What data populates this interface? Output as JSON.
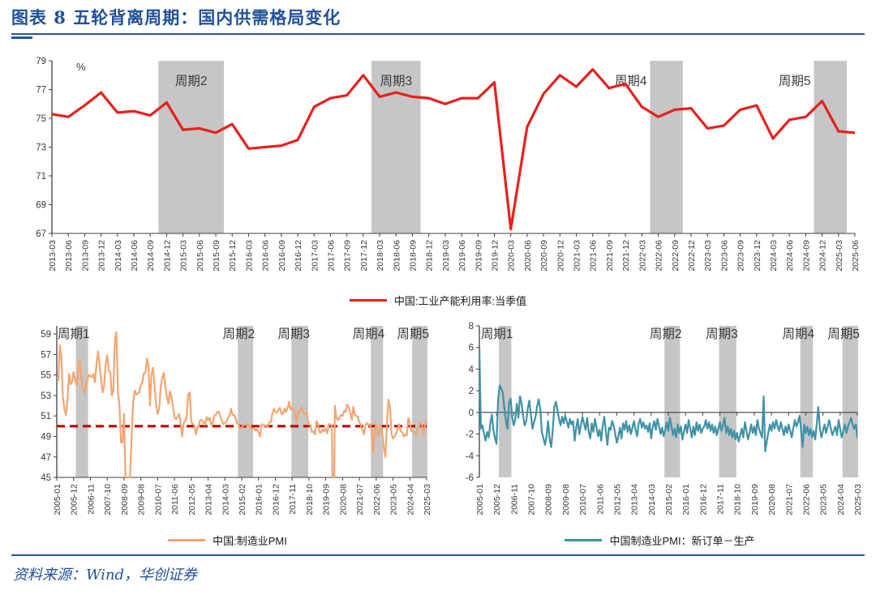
{
  "figure": {
    "title": "图表 8  五轮背离周期：国内供需格局变化",
    "source": "资料来源：Wind，华创证券"
  },
  "colors": {
    "accent_blue": "#21519B",
    "band_gray": "#C6C6C6",
    "line_red": "#E8201E",
    "line_orange": "#F3A571",
    "line_teal": "#3E92A6",
    "refline_dark_red": "#C00000"
  },
  "chart_data": [
    {
      "type": "line",
      "name": "capacity-utilization",
      "legend": "中国:工业产能利用率:当季值",
      "color": "#E8201E",
      "unit_label": "%",
      "ylim": [
        67,
        79
      ],
      "yticks": [
        67,
        69,
        71,
        73,
        75,
        77,
        79
      ],
      "x_type": "list",
      "x": [
        "2013-03",
        "2013-06",
        "2013-09",
        "2013-12",
        "2014-03",
        "2014-06",
        "2014-09",
        "2014-12",
        "2015-03",
        "2015-06",
        "2015-09",
        "2015-12",
        "2016-03",
        "2016-06",
        "2016-09",
        "2016-12",
        "2017-03",
        "2017-06",
        "2017-09",
        "2017-12",
        "2018-03",
        "2018-06",
        "2018-09",
        "2018-12",
        "2019-03",
        "2019-06",
        "2019-09",
        "2019-12",
        "2020-03",
        "2020-06",
        "2020-09",
        "2020-12",
        "2021-03",
        "2021-06",
        "2021-09",
        "2021-12",
        "2022-03",
        "2022-06",
        "2022-09",
        "2022-12",
        "2023-03",
        "2023-06",
        "2023-09",
        "2023-12",
        "2024-03",
        "2024-06",
        "2024-09",
        "2024-12",
        "2025-03",
        "2025-06"
      ],
      "values": [
        75.3,
        75.1,
        75.9,
        76.8,
        75.4,
        75.5,
        75.2,
        76.1,
        74.2,
        74.3,
        74.0,
        74.6,
        72.9,
        73.0,
        73.1,
        73.5,
        75.8,
        76.4,
        76.6,
        78.0,
        76.5,
        76.8,
        76.5,
        76.4,
        76.0,
        76.4,
        76.4,
        77.5,
        67.3,
        74.4,
        76.7,
        78.0,
        77.2,
        78.4,
        77.1,
        77.4,
        75.8,
        75.1,
        75.6,
        75.7,
        74.3,
        74.5,
        75.6,
        75.9,
        73.6,
        74.9,
        75.1,
        76.2,
        74.1,
        74.0
      ],
      "bands": [
        {
          "label": "周期2",
          "from": "2014-12",
          "to": "2015-09",
          "label_anchor": "center"
        },
        {
          "label": "周期3",
          "from": "2018-03",
          "to": "2018-09",
          "label_anchor": "center"
        },
        {
          "label": "周期4",
          "from": "2022-06",
          "to": "2022-09",
          "label_anchor": "before"
        },
        {
          "label": "周期5",
          "from": "2024-12",
          "to": "2025-03",
          "label_anchor": "before"
        }
      ]
    },
    {
      "type": "line",
      "name": "manufacturing-pmi",
      "legend": "中国:制造业PMI",
      "color": "#F3A571",
      "ylim": [
        45,
        59.8
      ],
      "yticks": [
        45,
        47,
        49,
        51,
        53,
        55,
        57,
        59
      ],
      "x_type": "monthly",
      "x_start": "2005-01",
      "x_end": "2025-03",
      "tick_interval_months": 11,
      "tick_labels": [
        "2005-01",
        "2005-12",
        "2006-11",
        "2007-10",
        "2008-09",
        "2009-08",
        "2010-07",
        "2011-06",
        "2012-05",
        "2013-04",
        "2014-03",
        "2015-02",
        "2016-01",
        "2016-12",
        "2017-11",
        "2018-10",
        "2019-09",
        "2020-08",
        "2021-07",
        "2022-06",
        "2023-05",
        "2024-04",
        "2025-03"
      ],
      "refline": {
        "value": 50,
        "color": "#C00000",
        "dashed": true
      },
      "values": [
        54.7,
        54.5,
        57.9,
        56.7,
        52.9,
        51.7,
        51.1,
        52.6,
        55.1,
        54.1,
        54.3,
        55.3,
        54.5,
        54.0,
        55.8,
        56.5,
        54.8,
        53.9,
        53.2,
        53.9,
        54.5,
        55.0,
        54.9,
        54.8,
        55.1,
        54.3,
        56.1,
        57.3,
        55.9,
        54.5,
        53.3,
        54.0,
        56.1,
        56.9,
        55.4,
        55.3,
        53.0,
        53.4,
        58.4,
        59.2,
        53.3,
        52.0,
        48.4,
        48.4,
        51.2,
        44.6,
        38.8,
        41.2,
        45.3,
        49.0,
        52.4,
        53.5,
        53.1,
        53.2,
        53.3,
        54.0,
        54.3,
        55.2,
        55.2,
        56.6,
        55.8,
        52.0,
        55.1,
        55.7,
        53.9,
        52.1,
        51.2,
        51.7,
        53.8,
        54.7,
        55.2,
        53.9,
        52.9,
        52.2,
        53.4,
        52.9,
        52.0,
        50.9,
        50.7,
        50.9,
        51.2,
        50.4,
        49.0,
        50.3,
        50.5,
        51.0,
        53.1,
        53.3,
        50.4,
        50.2,
        50.1,
        49.2,
        49.8,
        50.2,
        50.6,
        50.6,
        50.4,
        50.1,
        50.9,
        50.6,
        50.8,
        50.1,
        50.3,
        51.0,
        51.1,
        51.4,
        51.4,
        51.0,
        50.5,
        50.2,
        50.3,
        50.4,
        50.8,
        51.0,
        51.7,
        51.1,
        51.1,
        50.8,
        50.3,
        50.1,
        49.8,
        49.9,
        50.1,
        50.1,
        50.2,
        50.2,
        50.0,
        49.7,
        49.8,
        49.8,
        49.6,
        49.7,
        49.4,
        49.0,
        50.2,
        50.1,
        50.1,
        50.0,
        49.9,
        50.4,
        50.4,
        51.2,
        51.7,
        51.4,
        51.3,
        51.6,
        51.8,
        51.2,
        51.2,
        51.7,
        51.4,
        51.7,
        52.4,
        51.6,
        51.8,
        51.6,
        51.3,
        50.3,
        51.5,
        51.4,
        51.9,
        51.5,
        51.2,
        51.3,
        50.8,
        50.2,
        50.0,
        49.4,
        49.5,
        49.2,
        50.5,
        50.1,
        49.4,
        49.4,
        49.7,
        49.5,
        49.8,
        49.3,
        50.2,
        50.2,
        50.0,
        35.7,
        52.0,
        50.8,
        50.6,
        50.9,
        51.1,
        51.0,
        51.5,
        51.4,
        52.1,
        51.9,
        51.3,
        50.6,
        51.9,
        51.1,
        51.0,
        50.9,
        50.4,
        50.1,
        49.6,
        49.2,
        50.1,
        50.3,
        50.1,
        50.2,
        49.5,
        47.4,
        49.6,
        50.2,
        49.0,
        49.4,
        50.1,
        49.2,
        48.0,
        47.0,
        50.1,
        52.6,
        51.9,
        49.2,
        48.8,
        49.0,
        49.3,
        49.7,
        50.2,
        49.5,
        49.4,
        49.0,
        49.2,
        49.1,
        50.8,
        50.4,
        49.5,
        49.5,
        49.4,
        49.1,
        49.8,
        50.1,
        50.3,
        50.1,
        49.1,
        50.2,
        50.5
      ],
      "bands": [
        {
          "label": "周期1",
          "from": "2006-02",
          "to": "2006-09",
          "label_anchor": "end"
        },
        {
          "label": "周期2",
          "from": "2014-12",
          "to": "2015-09",
          "label_anchor": "end"
        },
        {
          "label": "周期3",
          "from": "2017-11",
          "to": "2018-09",
          "label_anchor": "end"
        },
        {
          "label": "周期4",
          "from": "2022-03",
          "to": "2022-10",
          "label_anchor": "end"
        },
        {
          "label": "周期5",
          "from": "2024-06",
          "to": "2025-03",
          "label_anchor": "end"
        }
      ]
    },
    {
      "type": "line",
      "name": "pmi-new-orders-minus-production",
      "legend": "中国制造业PMI：新订单－生产",
      "color": "#3E92A6",
      "ylim": [
        -6,
        8
      ],
      "yticks": [
        -6,
        -4,
        -2,
        0,
        2,
        4,
        6,
        8
      ],
      "zero_axis": true,
      "x_type": "monthly",
      "x_start": "2005-01",
      "x_end": "2025-03",
      "tick_interval_months": 11,
      "tick_labels": [
        "2005-01",
        "2005-12",
        "2006-11",
        "2007-10",
        "2008-09",
        "2009-08",
        "2010-07",
        "2011-06",
        "2012-05",
        "2013-04",
        "2014-03",
        "2015-02",
        "2016-01",
        "2016-12",
        "2017-11",
        "2018-10",
        "2019-09",
        "2020-08",
        "2021-07",
        "2022-06",
        "2023-05",
        "2024-04",
        "2025-03"
      ],
      "values": [
        6.0,
        -1.5,
        -1.2,
        -2.0,
        -2.6,
        -1.8,
        -2.3,
        -1.0,
        -0.2,
        -1.6,
        -2.4,
        -2.9,
        1.2,
        2.5,
        2.2,
        1.8,
        0.4,
        -0.8,
        -1.5,
        0.9,
        1.3,
        -0.4,
        -1.2,
        -0.6,
        0.8,
        -0.5,
        1.5,
        0.9,
        -0.3,
        -1.2,
        -0.8,
        0.4,
        1.1,
        -0.2,
        -1.5,
        -0.9,
        -0.4,
        0.6,
        1.2,
        0.3,
        -1.8,
        -2.4,
        -3.0,
        -2.2,
        -0.8,
        -2.5,
        -3.2,
        -1.6,
        0.5,
        1.0,
        0.2,
        -0.6,
        -1.2,
        -0.4,
        -1.0,
        -0.3,
        -0.8,
        -1.4,
        -0.6,
        -1.1,
        -0.8,
        -2.6,
        -1.4,
        -0.6,
        -2.0,
        -1.2,
        -0.4,
        -1.0,
        -1.6,
        -0.5,
        -1.8,
        -2.4,
        -1.0,
        -1.8,
        -0.6,
        -1.4,
        -2.2,
        -1.6,
        -2.6,
        -1.2,
        -0.4,
        -1.8,
        -3.0,
        -1.4,
        -1.6,
        -0.8,
        -1.2,
        -2.0,
        -2.8,
        -2.2,
        -1.4,
        -2.4,
        -1.0,
        -1.6,
        -0.8,
        -1.8,
        -1.2,
        -2.0,
        -1.4,
        -0.8,
        -1.6,
        -2.2,
        -1.0,
        -0.6,
        -1.4,
        -0.9,
        -1.5,
        -1.2,
        -1.8,
        -1.0,
        -2.4,
        -1.4,
        -0.8,
        -1.6,
        -0.6,
        -1.2,
        -2.0,
        -1.4,
        -2.2,
        -1.6,
        -0.9,
        -1.7,
        -0.5,
        -1.3,
        -2.1,
        -1.5,
        -2.3,
        -1.1,
        -1.9,
        -1.3,
        -2.5,
        -1.7,
        -1.1,
        -1.9,
        -0.7,
        -1.5,
        -2.3,
        -1.3,
        -2.1,
        -0.9,
        -1.7,
        -1.1,
        -1.9,
        -1.5,
        -1.3,
        -0.7,
        -1.5,
        -0.9,
        -1.7,
        -1.1,
        -1.9,
        -1.3,
        -2.1,
        -1.5,
        -0.9,
        -1.7,
        -1.1,
        -0.5,
        -1.9,
        -1.3,
        -2.1,
        -1.5,
        -2.3,
        -1.7,
        -2.5,
        -1.9,
        -2.7,
        -2.1,
        -1.5,
        -2.3,
        -0.9,
        -1.7,
        -2.5,
        -1.9,
        -1.1,
        -1.9,
        -1.3,
        -2.1,
        -0.7,
        -1.5,
        -1.9,
        -2.3,
        1.5,
        -3.6,
        -2.7,
        -1.9,
        -1.1,
        -1.7,
        -0.9,
        -1.5,
        -0.7,
        -1.3,
        -1.7,
        -0.9,
        -1.5,
        -2.1,
        -1.3,
        -1.9,
        -1.1,
        -1.7,
        -2.3,
        -1.5,
        -0.7,
        -1.3,
        -0.9,
        -0.3,
        -1.7,
        -3.2,
        -1.1,
        -1.9,
        -1.3,
        -2.1,
        -1.5,
        -2.3,
        -1.7,
        -2.5,
        -1.1,
        0.5,
        -1.5,
        -2.3,
        -1.7,
        -1.1,
        -1.9,
        -1.3,
        -0.7,
        -1.5,
        -2.1,
        -1.7,
        -1.3,
        -2.1,
        -0.7,
        -1.5,
        -2.3,
        -1.7,
        -1.1,
        -1.9,
        -1.3,
        -0.9,
        -0.5,
        -1.1,
        -1.5,
        -1.1,
        -2.3
      ],
      "bands": [
        {
          "label": "周期1",
          "from": "2006-02",
          "to": "2006-09",
          "label_anchor": "end"
        },
        {
          "label": "周期2",
          "from": "2014-12",
          "to": "2015-09",
          "label_anchor": "end"
        },
        {
          "label": "周期3",
          "from": "2017-11",
          "to": "2018-09",
          "label_anchor": "end"
        },
        {
          "label": "周期4",
          "from": "2022-03",
          "to": "2022-10",
          "label_anchor": "end"
        },
        {
          "label": "周期5",
          "from": "2024-06",
          "to": "2025-03",
          "label_anchor": "end"
        }
      ]
    }
  ]
}
